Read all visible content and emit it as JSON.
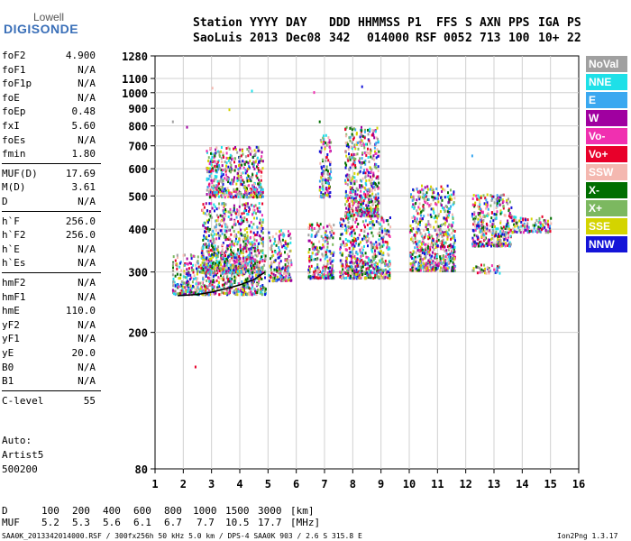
{
  "logo": {
    "line1": "Lowell",
    "line2": "DIGISONDE"
  },
  "header": {
    "labels": [
      "Station",
      "YYYY",
      "DAY",
      "DDD",
      "HHMMSS",
      "P1",
      "FFS",
      "S",
      "AXN",
      "PPS",
      "IGA",
      "PS"
    ],
    "values": [
      "SaoLuis",
      "2013",
      "Dec08",
      "342",
      "014000",
      "RSF",
      "005",
      "2",
      "713",
      "100",
      "10+",
      "22"
    ]
  },
  "params_groups": [
    [
      {
        "name": "foF2",
        "value": "4.900"
      },
      {
        "name": "foF1",
        "value": "N/A"
      },
      {
        "name": "foF1p",
        "value": "N/A"
      },
      {
        "name": "foE",
        "value": "N/A"
      },
      {
        "name": "foEp",
        "value": "0.48"
      },
      {
        "name": "fxI",
        "value": "5.60"
      },
      {
        "name": "foEs",
        "value": "N/A"
      },
      {
        "name": "fmin",
        "value": "1.80"
      }
    ],
    [
      {
        "name": "MUF(D)",
        "value": "17.69"
      },
      {
        "name": "M(D)",
        "value": "3.61"
      },
      {
        "name": "D",
        "value": "N/A"
      }
    ],
    [
      {
        "name": "h`F",
        "value": "256.0"
      },
      {
        "name": "h`F2",
        "value": "256.0"
      },
      {
        "name": "h`E",
        "value": "N/A"
      },
      {
        "name": "h`Es",
        "value": "N/A"
      }
    ],
    [
      {
        "name": "hmF2",
        "value": "N/A"
      },
      {
        "name": "hmF1",
        "value": "N/A"
      },
      {
        "name": "hmE",
        "value": "110.0"
      },
      {
        "name": "yF2",
        "value": "N/A"
      },
      {
        "name": "yF1",
        "value": "N/A"
      },
      {
        "name": "yE",
        "value": "20.0"
      },
      {
        "name": "B0",
        "value": "N/A"
      },
      {
        "name": "B1",
        "value": "N/A"
      }
    ],
    [
      {
        "name": "C-level",
        "value": "55"
      }
    ]
  ],
  "scaling": {
    "line1": "Auto:",
    "line2": "Artist5",
    "line3": "500200"
  },
  "legend": [
    {
      "label": "NoVal",
      "color": "#a0a0a0"
    },
    {
      "label": "NNE",
      "color": "#1ee0e8"
    },
    {
      "label": "E",
      "color": "#3aa8f0"
    },
    {
      "label": "W",
      "color": "#a000a0"
    },
    {
      "label": "Vo-",
      "color": "#f030b0"
    },
    {
      "label": "Vo+",
      "color": "#e8002a"
    },
    {
      "label": "SSW",
      "color": "#f4b8b0"
    },
    {
      "label": "X-",
      "color": "#006e00"
    },
    {
      "label": "X+",
      "color": "#7cb860"
    },
    {
      "label": "SSE",
      "color": "#d4d400"
    },
    {
      "label": "NNW",
      "color": "#1414d8"
    }
  ],
  "footer": {
    "d_label": "D",
    "d_values": [
      "100",
      "200",
      "400",
      "600",
      "800",
      "1000",
      "1500",
      "3000"
    ],
    "d_unit": "[km]",
    "muf_label": "MUF",
    "muf_values": [
      "5.2",
      "5.3",
      "5.6",
      "6.1",
      "6.7",
      "7.7",
      "10.5",
      "17.7"
    ],
    "muf_unit": "[MHz]",
    "file_info": "SAA0K_2013342014000.RSF / 300fx256h 50 kHz 5.0 km / DPS-4 SAA0K 903 / 2.6 S 315.8 E",
    "version": "Ion2Png 1.3.17"
  },
  "chart_data": {
    "type": "scatter",
    "xlim": [
      1,
      16
    ],
    "x_ticks": [
      1,
      2,
      3,
      4,
      5,
      6,
      7,
      8,
      9,
      10,
      11,
      12,
      13,
      14,
      15,
      16
    ],
    "y_scale": "log",
    "ylim": [
      80,
      1280
    ],
    "y_ticks": [
      80,
      200,
      300,
      400,
      500,
      600,
      700,
      800,
      900,
      1000,
      1100,
      1280
    ],
    "grid": true,
    "legend_position": "right",
    "trace_h_F": [
      [
        1.8,
        256
      ],
      [
        2.5,
        258
      ],
      [
        3.0,
        262
      ],
      [
        3.5,
        268
      ],
      [
        4.0,
        275
      ],
      [
        4.5,
        285
      ],
      [
        4.9,
        300
      ]
    ],
    "clusters": [
      {
        "fmin": 1.6,
        "fmax": 4.9,
        "hmin": 260,
        "hmax": 340
      },
      {
        "fmin": 2.6,
        "fmax": 4.8,
        "hmin": 300,
        "hmax": 480
      },
      {
        "fmin": 2.8,
        "fmax": 4.8,
        "hmin": 500,
        "hmax": 700
      },
      {
        "fmin": 5.0,
        "fmax": 5.8,
        "hmin": 285,
        "hmax": 400
      },
      {
        "fmin": 6.4,
        "fmax": 7.3,
        "hmin": 290,
        "hmax": 420
      },
      {
        "fmin": 6.8,
        "fmax": 7.2,
        "hmin": 500,
        "hmax": 760
      },
      {
        "fmin": 7.5,
        "fmax": 9.3,
        "hmin": 290,
        "hmax": 440
      },
      {
        "fmin": 7.7,
        "fmax": 8.9,
        "hmin": 440,
        "hmax": 800
      },
      {
        "fmin": 10.0,
        "fmax": 11.6,
        "hmin": 305,
        "hmax": 540
      },
      {
        "fmin": 12.2,
        "fmax": 13.6,
        "hmin": 360,
        "hmax": 510
      },
      {
        "fmin": 13.6,
        "fmax": 15.0,
        "hmin": 395,
        "hmax": 440
      },
      {
        "fmin": 12.2,
        "fmax": 13.2,
        "hmin": 300,
        "hmax": 318
      }
    ],
    "outliers": [
      [
        1.6,
        830
      ],
      [
        2.1,
        800
      ],
      [
        3.0,
        1040
      ],
      [
        3.6,
        900
      ],
      [
        4.4,
        1020
      ],
      [
        6.6,
        1010
      ],
      [
        6.8,
        830
      ],
      [
        8.3,
        1050
      ],
      [
        12.2,
        660
      ],
      [
        2.4,
        160
      ]
    ]
  }
}
